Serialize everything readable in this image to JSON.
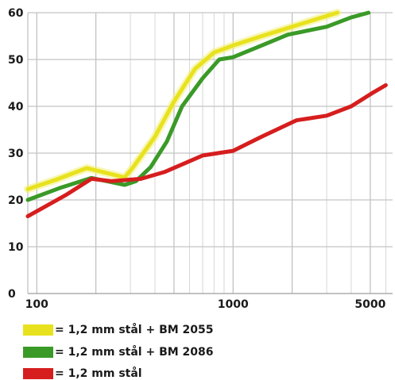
{
  "chart_data": {
    "type": "line",
    "x_scale": "log",
    "xlim": [
      90,
      6500
    ],
    "ylim": [
      0,
      60
    ],
    "x_ticks": [
      {
        "value": 100,
        "label": "100"
      },
      {
        "value": 1000,
        "label": "1000"
      },
      {
        "value": 5000,
        "label": "5000"
      }
    ],
    "y_ticks": [
      {
        "value": 0,
        "label": "0"
      },
      {
        "value": 10,
        "label": "10"
      },
      {
        "value": 20,
        "label": "20"
      },
      {
        "value": 30,
        "label": "30"
      },
      {
        "value": 40,
        "label": "40"
      },
      {
        "value": 50,
        "label": "50"
      },
      {
        "value": 60,
        "label": "60"
      }
    ],
    "grid": true,
    "legend_position": "bottom",
    "series": [
      {
        "name": "= 1,2 mm stål + BM 2055",
        "color": "#e8e21e",
        "points": [
          [
            90,
            22.3
          ],
          [
            125,
            24.3
          ],
          [
            180,
            26.8
          ],
          [
            280,
            24.8
          ],
          [
            310,
            27
          ],
          [
            400,
            33.5
          ],
          [
            500,
            41
          ],
          [
            640,
            48
          ],
          [
            800,
            51.5
          ],
          [
            1000,
            53
          ],
          [
            1400,
            55
          ],
          [
            2000,
            57
          ],
          [
            2600,
            58.5
          ],
          [
            3400,
            60
          ]
        ]
      },
      {
        "name": "= 1,2 mm stål + BM 2086",
        "color": "#3a9a27",
        "points": [
          [
            90,
            20
          ],
          [
            130,
            22.5
          ],
          [
            190,
            24.7
          ],
          [
            280,
            23.2
          ],
          [
            320,
            24
          ],
          [
            380,
            27
          ],
          [
            460,
            32.5
          ],
          [
            550,
            40
          ],
          [
            700,
            46
          ],
          [
            850,
            50
          ],
          [
            1000,
            50.5
          ],
          [
            1400,
            53
          ],
          [
            1900,
            55.3
          ],
          [
            3000,
            57
          ],
          [
            4000,
            59
          ],
          [
            4900,
            60
          ]
        ]
      },
      {
        "name": "= 1,2 mm stål",
        "color": "#d61e1e",
        "points": [
          [
            90,
            16.5
          ],
          [
            140,
            21
          ],
          [
            190,
            24.5
          ],
          [
            240,
            24
          ],
          [
            340,
            24.5
          ],
          [
            450,
            26
          ],
          [
            700,
            29.5
          ],
          [
            1000,
            30.5
          ],
          [
            1400,
            33.5
          ],
          [
            2100,
            37
          ],
          [
            3000,
            38
          ],
          [
            4000,
            40
          ],
          [
            5200,
            43
          ],
          [
            6000,
            44.5
          ]
        ]
      }
    ]
  }
}
